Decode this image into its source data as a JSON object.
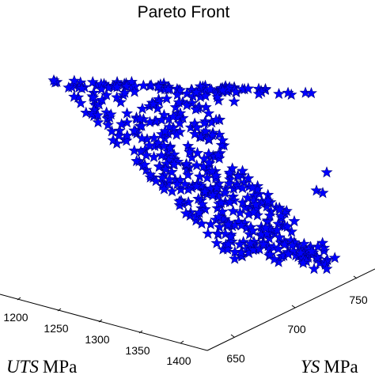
{
  "chart_data": {
    "type": "scatter",
    "title": "Pareto Front",
    "marker": "star",
    "marker_color": "#0000ff",
    "marker_edge_color": "#000080",
    "grid": false,
    "x_axis": {
      "label_var": "UTS",
      "label_unit": "MPa",
      "ticks": [
        "1200",
        "1250",
        "1300",
        "1350",
        "1400"
      ]
    },
    "y_axis": {
      "label_var": "YS",
      "label_unit": "MPa",
      "ticks": [
        "650",
        "700",
        "750"
      ]
    },
    "projected_region": {
      "description_points": "dense cluster of star markers; approximate outline of the projected point cloud",
      "outline": [
        [
          62,
          104
        ],
        [
          395,
          118
        ],
        [
          290,
          130
        ],
        [
          300,
          200
        ],
        [
          420,
          300
        ],
        [
          420,
          345
        ],
        [
          390,
          345
        ],
        [
          310,
          320
        ],
        [
          260,
          300
        ],
        [
          80,
          125
        ]
      ],
      "outliers": [
        [
          413,
          218
        ],
        [
          400,
          241
        ],
        [
          408,
          244
        ],
        [
          397,
          340
        ],
        [
          413,
          340
        ],
        [
          394,
          318
        ]
      ]
    }
  }
}
